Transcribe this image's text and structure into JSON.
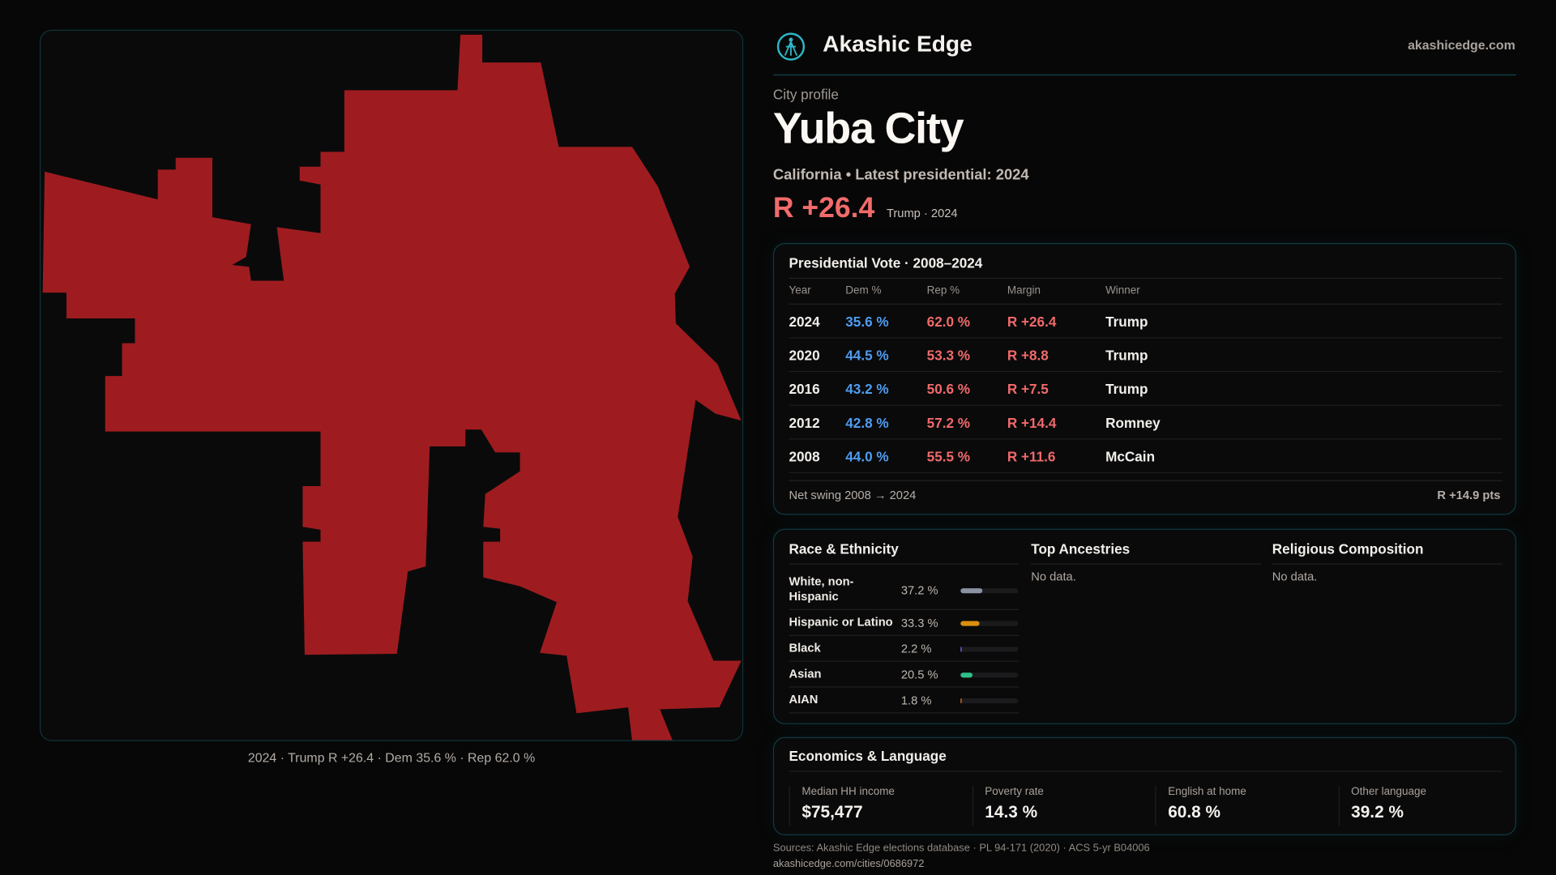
{
  "brand": {
    "name": "Akashic Edge",
    "site": "akashicedge.com",
    "logo_icon": "akashic-logo-icon"
  },
  "map": {
    "caption": "2024 · Trump R +26.4 · Dem 35.6 % · Rep 62.0 %",
    "fill_color": "#9e1c1f"
  },
  "profile": {
    "kicker": "City profile",
    "title": "Yuba City",
    "subtitle": "California • Latest presidential: 2024",
    "margin": "R +26.4",
    "margin_note": "Trump · 2024",
    "margin_color": "#f26b6b"
  },
  "vote": {
    "title": "Presidential Vote · 2008–2024",
    "headers": [
      "Year",
      "Dem %",
      "Rep %",
      "Margin",
      "Winner"
    ],
    "rows": [
      [
        "2024",
        "35.6 %",
        "62.0 %",
        "R +26.4",
        "Trump"
      ],
      [
        "2020",
        "44.5 %",
        "53.3 %",
        "R +8.8",
        "Trump"
      ],
      [
        "2016",
        "43.2 %",
        "50.6 %",
        "R +7.5",
        "Trump"
      ],
      [
        "2012",
        "42.8 %",
        "57.2 %",
        "R +14.4",
        "Romney"
      ],
      [
        "2008",
        "44.0 %",
        "55.5 %",
        "R +11.6",
        "McCain"
      ]
    ],
    "swing_label": "Net swing 2008 → 2024",
    "swing_value": "R +14.9 pts",
    "dem_color": "#4f9cf0",
    "rep_color": "#f06a6a"
  },
  "race": {
    "title": "Race & Ethnicity",
    "items": [
      {
        "label": "White, non-Hispanic",
        "pct": "37.2 %",
        "value": 37.2,
        "color": "#8a93a3"
      },
      {
        "label": "Hispanic or Latino",
        "pct": "33.3 %",
        "value": 33.3,
        "color": "#d8900e"
      },
      {
        "label": "Black",
        "pct": "2.2 %",
        "value": 2.2,
        "color": "#7c6cf0"
      },
      {
        "label": "Asian",
        "pct": "20.5 %",
        "value": 20.5,
        "color": "#2fc08a"
      },
      {
        "label": "AIAN",
        "pct": "1.8 %",
        "value": 1.8,
        "color": "#e07a2a"
      }
    ]
  },
  "ancestries": {
    "title": "Top Ancestries",
    "empty": "No data."
  },
  "religion": {
    "title": "Religious Composition",
    "empty": "No data."
  },
  "econ": {
    "title": "Economics & Language",
    "stats": [
      {
        "label": "Median HH income",
        "value": "$75,477"
      },
      {
        "label": "Poverty rate",
        "value": "14.3 %"
      },
      {
        "label": "English at home",
        "value": "60.8 %"
      },
      {
        "label": "Other language",
        "value": "39.2 %"
      }
    ]
  },
  "footer": {
    "sources": "Sources: Akashic Edge elections database · PL 94-171 (2020) · ACS 5-yr B04006",
    "url": "akashicedge.com/cities/0686972"
  }
}
